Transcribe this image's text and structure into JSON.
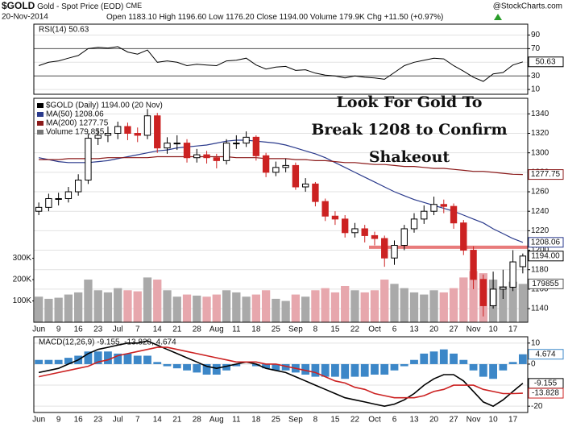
{
  "header": {
    "symbol": "$GOLD",
    "name": "Gold - Spot Price (EOD)",
    "exchange": "CME",
    "date": "20-Nov-2014",
    "source": "@StockCharts.com",
    "quote": [
      {
        "label": "Open",
        "value": "1183.10"
      },
      {
        "label": "High",
        "value": "1196.60"
      },
      {
        "label": "Low",
        "value": "1176.20"
      },
      {
        "label": "Close",
        "value": "1194.00"
      },
      {
        "label": "Volume",
        "value": "179.9K"
      },
      {
        "label": "Chg",
        "value": "+11.50 (+0.97%)"
      }
    ]
  },
  "chart_data": [
    {
      "type": "line",
      "title": "RSI(14) 50.63",
      "ylim": [
        3,
        106
      ],
      "yticks": [
        10,
        30,
        50,
        70,
        90
      ],
      "bands": [
        30,
        70
      ],
      "grid": true,
      "series": [
        {
          "color": "#000000",
          "values": [
            45,
            50,
            52,
            56,
            60,
            70,
            72,
            71,
            73,
            65,
            62,
            68,
            50,
            52,
            50,
            45,
            47,
            46,
            45,
            52,
            53,
            56,
            46,
            40,
            43,
            44,
            38,
            39,
            34,
            31,
            30,
            27,
            30,
            28,
            27,
            25,
            35,
            45,
            50,
            53,
            56,
            55,
            45,
            37,
            28,
            22,
            33,
            35,
            46,
            50.63
          ]
        }
      ]
    },
    {
      "type": "candlestick",
      "name": "$GOLD (Daily) 1194.00 (20 Nov)",
      "close_label": "1194.00",
      "ylim": [
        1126,
        1356
      ],
      "yticks": [
        1140,
        1160,
        1180,
        1200,
        1220,
        1240,
        1260,
        1280,
        1300,
        1320,
        1340
      ],
      "grid": true,
      "up_color": "#000000",
      "down_color": "#cc2222",
      "categories": [
        "Jun",
        null,
        "9",
        null,
        "16",
        null,
        "23",
        null,
        "Jul",
        null,
        "7",
        null,
        "14",
        null,
        "21",
        null,
        "28",
        null,
        "Aug",
        null,
        "11",
        null,
        "18",
        null,
        "25",
        null,
        "Sep",
        null,
        "8",
        null,
        "15",
        null,
        "22",
        null,
        "Oct",
        null,
        "6",
        null,
        "13",
        null,
        "20",
        null,
        "27",
        null,
        "Nov",
        null,
        "10",
        null,
        "17",
        null
      ],
      "open": [
        1240,
        1244,
        1253,
        1253,
        1260,
        1272,
        1315,
        1318,
        1320,
        1327,
        1320,
        1318,
        1338,
        1305,
        1310,
        1310,
        1295,
        1298,
        1295,
        1292,
        1310,
        1310,
        1316,
        1297,
        1280,
        1285,
        1287,
        1265,
        1268,
        1250,
        1235,
        1232,
        1218,
        1222,
        1215,
        1212,
        1192,
        1205,
        1222,
        1232,
        1240,
        1247,
        1245,
        1228,
        1200,
        1170,
        1143,
        1160,
        1162,
        1183.1
      ],
      "high": [
        1249,
        1258,
        1259,
        1265,
        1278,
        1320,
        1325,
        1327,
        1332,
        1331,
        1326,
        1345,
        1341,
        1316,
        1318,
        1314,
        1304,
        1302,
        1299,
        1314,
        1318,
        1322,
        1318,
        1300,
        1291,
        1294,
        1290,
        1274,
        1270,
        1253,
        1240,
        1236,
        1228,
        1226,
        1219,
        1215,
        1210,
        1226,
        1238,
        1246,
        1255,
        1252,
        1248,
        1231,
        1204,
        1175,
        1178,
        1180,
        1200,
        1196.6
      ],
      "low": [
        1236,
        1240,
        1246,
        1249,
        1256,
        1268,
        1308,
        1311,
        1314,
        1313,
        1311,
        1314,
        1300,
        1299,
        1303,
        1290,
        1290,
        1289,
        1284,
        1288,
        1304,
        1306,
        1292,
        1275,
        1276,
        1280,
        1262,
        1260,
        1245,
        1230,
        1226,
        1213,
        1213,
        1208,
        1205,
        1183,
        1185,
        1200,
        1218,
        1227,
        1236,
        1238,
        1222,
        1195,
        1160,
        1132,
        1140,
        1150,
        1158,
        1176.2
      ],
      "close": [
        1244,
        1253,
        1253,
        1260,
        1272,
        1315,
        1318,
        1320,
        1327,
        1320,
        1318,
        1338,
        1305,
        1310,
        1310,
        1295,
        1298,
        1295,
        1292,
        1310,
        1310,
        1316,
        1297,
        1280,
        1285,
        1287,
        1265,
        1268,
        1250,
        1235,
        1232,
        1218,
        1222,
        1215,
        1212,
        1192,
        1205,
        1222,
        1232,
        1240,
        1247,
        1245,
        1228,
        1200,
        1170,
        1143,
        1160,
        1162,
        1188,
        1194
      ],
      "overlays": [
        {
          "name": "MA(50) 1208.06",
          "color": "#2a3a8c",
          "values": [
            1295,
            1293,
            1291,
            1290,
            1290,
            1290,
            1291,
            1292,
            1294,
            1296,
            1298,
            1300,
            1302,
            1303,
            1305,
            1306,
            1307,
            1308,
            1310,
            1312,
            1313,
            1313,
            1312,
            1311,
            1310,
            1308,
            1305,
            1302,
            1299,
            1295,
            1290,
            1285,
            1280,
            1275,
            1270,
            1265,
            1260,
            1256,
            1252,
            1249,
            1246,
            1243,
            1240,
            1236,
            1232,
            1228,
            1222,
            1217,
            1212,
            1208.06
          ]
        },
        {
          "name": "MA(200) 1277.75",
          "color": "#8b1a1a",
          "values": [
            1293,
            1293,
            1293,
            1294,
            1294,
            1294,
            1294,
            1295,
            1295,
            1295,
            1295,
            1295,
            1296,
            1296,
            1296,
            1296,
            1296,
            1296,
            1296,
            1296,
            1295,
            1295,
            1295,
            1294,
            1294,
            1294,
            1293,
            1293,
            1292,
            1292,
            1291,
            1290,
            1290,
            1289,
            1288,
            1288,
            1287,
            1286,
            1286,
            1285,
            1284,
            1284,
            1283,
            1282,
            1281,
            1281,
            1280,
            1279,
            1278,
            1277.75
          ]
        }
      ],
      "volume": {
        "name": "Volume 179,855",
        "ylim": [
          0,
          1050000
        ],
        "yticks": [
          {
            "value": 100000,
            "label": "100K"
          },
          {
            "value": 200000,
            "label": "200K"
          },
          {
            "value": 300000,
            "label": "300K"
          }
        ],
        "up_color": "#a9a9a9",
        "down_color": "#e7a7ad",
        "values": [
          120000,
          110000,
          115000,
          130000,
          140000,
          200000,
          150000,
          140000,
          160000,
          150000,
          145000,
          210000,
          200000,
          150000,
          120000,
          130000,
          125000,
          120000,
          130000,
          150000,
          140000,
          120000,
          130000,
          150000,
          110000,
          100000,
          130000,
          120000,
          150000,
          160000,
          140000,
          170000,
          150000,
          140000,
          150000,
          200000,
          180000,
          160000,
          140000,
          130000,
          150000,
          140000,
          160000,
          210000,
          240000,
          230000,
          200000,
          170000,
          190000,
          179855
        ]
      },
      "annotation": [
        "Look For Gold To",
        "Break 1208 to Confirm",
        "Shakeout"
      ],
      "hline": {
        "value": 1203,
        "color": "#e46464"
      }
    },
    {
      "type": "line",
      "title": "MACD(12,26,9) -9.155, -13.828, 4.674",
      "ylim": [
        -23,
        13
      ],
      "yticks": [
        10,
        0,
        -10,
        -20
      ],
      "grid": true,
      "series": [
        {
          "color": "#000000",
          "values": [
            -4,
            -3,
            -2,
            0,
            2,
            5,
            7,
            8,
            9,
            10,
            10,
            11,
            9,
            7,
            5,
            3,
            1,
            -1,
            -2,
            -1,
            0,
            1,
            0,
            -2,
            -3,
            -4,
            -6,
            -8,
            -10,
            -12,
            -14,
            -16,
            -17,
            -18,
            -19,
            -20,
            -19,
            -17,
            -14,
            -10,
            -7,
            -5,
            -5,
            -8,
            -13,
            -18,
            -20,
            -17,
            -13,
            -9.155
          ]
        },
        {
          "color": "#cc2222",
          "values": [
            -6,
            -5,
            -4,
            -3,
            -2,
            -1,
            1,
            2,
            4,
            5,
            6,
            7,
            8,
            8,
            7,
            6,
            5,
            4,
            3,
            2,
            1,
            1,
            1,
            0,
            0,
            -1,
            -2,
            -3,
            -4,
            -6,
            -8,
            -9,
            -11,
            -12,
            -14,
            -15,
            -16,
            -16,
            -16,
            -15,
            -13,
            -12,
            -10,
            -10,
            -10,
            -12,
            -13,
            -14,
            -14,
            -13.828
          ]
        },
        {
          "type": "bar",
          "color": "#3c87c8",
          "values": [
            2,
            2,
            2,
            3,
            4,
            6,
            6,
            6,
            5,
            5,
            4,
            4,
            1,
            -1,
            -2,
            -3,
            -4,
            -5,
            -5,
            -3,
            -1,
            0,
            -1,
            -2,
            -3,
            -3,
            -4,
            -5,
            -6,
            -6,
            -6,
            -7,
            -6,
            -6,
            -5,
            -5,
            -3,
            -1,
            2,
            5,
            6,
            7,
            5,
            2,
            -3,
            -6,
            -7,
            -3,
            1,
            4.674
          ]
        }
      ]
    }
  ]
}
